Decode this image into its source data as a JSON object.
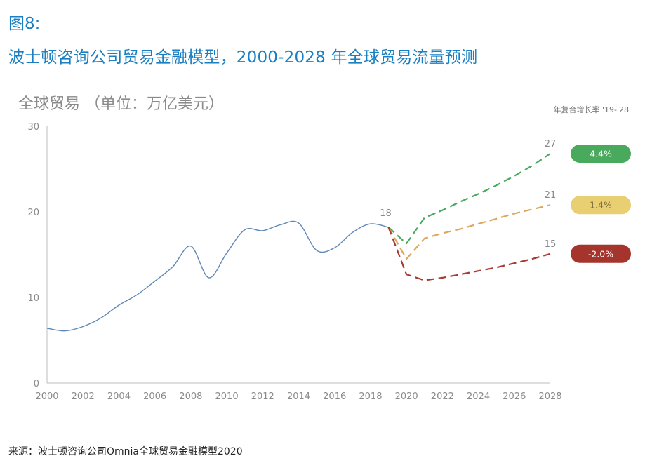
{
  "figure_label": "图8:",
  "title": "波士顿咨询公司贸易金融模型，2000-2028 年全球贸易流量预测",
  "source": "来源：波士顿咨询公司Omnia全球贸易金融模型2020",
  "chart_data": {
    "type": "line",
    "subtitle": "全球贸易 （单位：万亿美元）",
    "cagr_header": "年复合增长率 '19-'28",
    "xlim": [
      2000,
      2028
    ],
    "ylim": [
      0,
      30
    ],
    "x_ticks": [
      "2000",
      "2002",
      "2004",
      "2006",
      "2008",
      "2010",
      "2012",
      "2014",
      "2016",
      "2018",
      "2020",
      "2022",
      "2024",
      "2026",
      "2028"
    ],
    "y_ticks": [
      "0",
      "10",
      "20",
      "30"
    ],
    "grid": false,
    "series": [
      {
        "name": "historical",
        "color": "#5f87b5",
        "style": "solid",
        "x": [
          2000,
          2001,
          2002,
          2003,
          2004,
          2005,
          2006,
          2007,
          2008,
          2009,
          2010,
          2011,
          2012,
          2013,
          2014,
          2015,
          2016,
          2017,
          2018,
          2019
        ],
        "y": [
          6.4,
          6.1,
          6.6,
          7.6,
          9.1,
          10.3,
          11.9,
          13.6,
          16.0,
          12.3,
          15.2,
          17.9,
          17.8,
          18.5,
          18.7,
          15.5,
          15.8,
          17.6,
          18.6,
          18.2
        ]
      },
      {
        "name": "scenario-high",
        "color": "#49a95c",
        "style": "dashed",
        "x": [
          2019,
          2020,
          2021,
          2022,
          2023,
          2024,
          2025,
          2026,
          2027,
          2028
        ],
        "y": [
          18.2,
          16.3,
          19.3,
          20.2,
          21.2,
          22.1,
          23.1,
          24.2,
          25.4,
          26.8
        ],
        "end_label": "27",
        "cagr": "4.4%",
        "badge_color": "#49a95c",
        "badge_text_color": "#ffffff"
      },
      {
        "name": "scenario-mid",
        "color": "#dda85a",
        "style": "dashed",
        "x": [
          2019,
          2020,
          2021,
          2022,
          2023,
          2024,
          2025,
          2026,
          2027,
          2028
        ],
        "y": [
          18.2,
          14.5,
          16.9,
          17.5,
          18.0,
          18.6,
          19.2,
          19.8,
          20.3,
          20.8
        ],
        "end_label": "21",
        "cagr": "1.4%",
        "badge_color": "#e8cf72",
        "badge_text_color": "#7a6a3c"
      },
      {
        "name": "scenario-low",
        "color": "#a83a33",
        "style": "dashed",
        "x": [
          2019,
          2020,
          2021,
          2022,
          2023,
          2024,
          2025,
          2026,
          2027,
          2028
        ],
        "y": [
          18.2,
          12.7,
          12.0,
          12.3,
          12.7,
          13.1,
          13.5,
          14.0,
          14.5,
          15.1
        ],
        "end_label": "15",
        "cagr": "-2.0%",
        "badge_color": "#a5342d",
        "badge_text_color": "#ffffff"
      }
    ],
    "annotation": {
      "x": 2019,
      "y": 18.2,
      "text": "18"
    }
  }
}
